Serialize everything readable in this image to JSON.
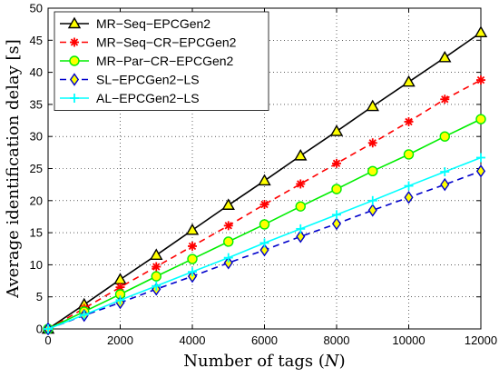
{
  "chart_data": {
    "type": "line",
    "title": "",
    "xlabel_text": "Number of tags (",
    "xlabel_var": "N",
    "xlabel_close": ")",
    "ylabel": "Average identification delay [s]",
    "xlim": [
      0,
      12000
    ],
    "ylim": [
      0,
      50
    ],
    "xticks": [
      0,
      2000,
      4000,
      6000,
      8000,
      10000,
      12000
    ],
    "yticks": [
      0,
      5,
      10,
      15,
      20,
      25,
      30,
      35,
      40,
      45,
      50
    ],
    "grid": true,
    "legend_position": "top-left",
    "x": [
      0,
      1000,
      2000,
      3000,
      4000,
      5000,
      6000,
      7000,
      8000,
      9000,
      10000,
      11000,
      12000
    ],
    "series": [
      {
        "name": "MR−Seq−EPCGen2",
        "color": "#000000",
        "line": "solid",
        "marker": "triangle",
        "marker_fill": "#ffff00",
        "values": [
          0,
          3.8,
          7.7,
          11.5,
          15.4,
          19.3,
          23.1,
          27.0,
          30.8,
          34.7,
          38.5,
          42.3,
          46.2
        ]
      },
      {
        "name": "MR−Seq−CR−EPCGen2",
        "color": "#ff0000",
        "line": "dashed",
        "marker": "asterisk",
        "marker_fill": "#ff0000",
        "values": [
          0,
          3.2,
          6.5,
          9.7,
          12.9,
          16.1,
          19.4,
          22.6,
          25.8,
          29.0,
          32.3,
          35.8,
          38.8
        ]
      },
      {
        "name": "MR−Par−CR−EPCGen2",
        "color": "#00ee00",
        "line": "solid",
        "marker": "circle",
        "marker_fill": "#ffff00",
        "values": [
          0,
          2.7,
          5.4,
          8.2,
          10.9,
          13.6,
          16.3,
          19.1,
          21.8,
          24.6,
          27.2,
          30.0,
          32.7
        ]
      },
      {
        "name": "SL−EPCGen2−LS",
        "color": "#0000cc",
        "line": "dashed",
        "marker": "diamond",
        "marker_fill": "#ffff00",
        "values": [
          0,
          2.1,
          4.1,
          6.2,
          8.2,
          10.3,
          12.3,
          14.4,
          16.4,
          18.5,
          20.5,
          22.5,
          24.6
        ]
      },
      {
        "name": "AL−EPCGen2−LS",
        "color": "#00ffff",
        "line": "solid",
        "marker": "plus",
        "marker_fill": "#00ffff",
        "values": [
          0,
          2.2,
          4.5,
          6.7,
          8.9,
          11.1,
          13.4,
          15.6,
          17.8,
          20.0,
          22.3,
          24.5,
          26.7
        ]
      }
    ]
  }
}
